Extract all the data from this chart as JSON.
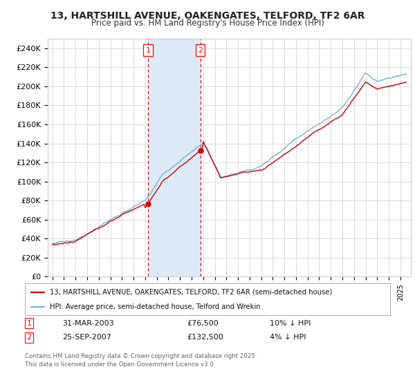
{
  "title": "13, HARTSHILL AVENUE, OAKENGATES, TELFORD, TF2 6AR",
  "subtitle": "Price paid vs. HM Land Registry's House Price Index (HPI)",
  "ylim": [
    0,
    250000
  ],
  "yticks": [
    0,
    20000,
    40000,
    60000,
    80000,
    100000,
    120000,
    140000,
    160000,
    180000,
    200000,
    220000,
    240000
  ],
  "sale1_x": 2003.25,
  "sale1_price": 76500,
  "sale1_label": "31-MAR-2003",
  "sale1_note": "10% ↓ HPI",
  "sale2_x": 2007.75,
  "sale2_price": 132500,
  "sale2_label": "25-SEP-2007",
  "sale2_note": "4% ↓ HPI",
  "legend_line1": "13, HARTSHILL AVENUE, OAKENGATES, TELFORD, TF2 6AR (semi-detached house)",
  "legend_line2": "HPI: Average price, semi-detached house, Telford and Wrekin",
  "footer": "Contains HM Land Registry data © Crown copyright and database right 2025.\nThis data is licensed under the Open Government Licence v3.0.",
  "hpi_color": "#7aace0",
  "price_color": "#cc0000",
  "shade_color": "#dceaf7",
  "background_color": "#ffffff",
  "grid_color": "#cccccc"
}
